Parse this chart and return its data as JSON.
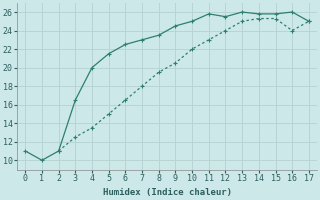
{
  "xlabel": "Humidex (Indice chaleur)",
  "background_color": "#cce8e8",
  "line_color": "#2e7f70",
  "grid_color": "#b8d4d4",
  "x_upper": [
    0,
    1,
    2,
    3,
    4,
    5,
    6,
    7,
    8,
    9,
    10,
    11,
    12,
    13,
    14,
    15,
    16,
    17
  ],
  "y_upper": [
    11,
    10,
    11,
    16.5,
    20,
    21.5,
    22.5,
    23,
    23.5,
    24.5,
    25,
    25.8,
    25.5,
    26,
    25.8,
    25.8,
    26,
    25
  ],
  "x_lower": [
    2,
    3,
    4,
    5,
    6,
    7,
    8,
    9,
    10,
    11,
    12,
    13,
    14,
    15,
    16,
    17
  ],
  "y_lower": [
    11,
    12.5,
    13.5,
    15,
    16.5,
    18,
    19.5,
    20.5,
    22,
    23,
    24,
    25,
    25.3,
    25.3,
    24,
    25
  ],
  "xlim": [
    -0.5,
    17.5
  ],
  "ylim": [
    9,
    27
  ],
  "yticks": [
    10,
    12,
    14,
    16,
    18,
    20,
    22,
    24,
    26
  ],
  "xticks": [
    0,
    1,
    2,
    3,
    4,
    5,
    6,
    7,
    8,
    9,
    10,
    11,
    12,
    13,
    14,
    15,
    16,
    17
  ]
}
